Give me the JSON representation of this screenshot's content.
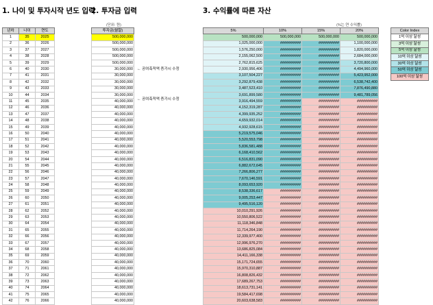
{
  "headers": {
    "section1": "1. 나이 및 투자시작 년도 입력",
    "section2": "2. 투자금 입력",
    "section3": "3. 수익률에 따른 자산"
  },
  "notes": {
    "unit1": "(단위: 원)",
    "unit2": "(%는 연 수익률)"
  },
  "left_table": {
    "columns": [
      "년차",
      "나이",
      "연도"
    ],
    "rows": [
      [
        1,
        35,
        2025
      ],
      [
        2,
        36,
        2026
      ],
      [
        3,
        37,
        2027
      ],
      [
        4,
        38,
        2028
      ],
      [
        5,
        39,
        2029
      ],
      [
        6,
        40,
        2030
      ],
      [
        7,
        41,
        2031
      ],
      [
        8,
        42,
        2032
      ],
      [
        9,
        43,
        2033
      ],
      [
        10,
        44,
        2034
      ],
      [
        11,
        45,
        2035
      ],
      [
        12,
        46,
        2036
      ],
      [
        13,
        47,
        2037
      ],
      [
        14,
        48,
        2038
      ],
      [
        15,
        49,
        2039
      ],
      [
        16,
        50,
        2040
      ],
      [
        17,
        51,
        2041
      ],
      [
        18,
        52,
        2042
      ],
      [
        19,
        53,
        2043
      ],
      [
        20,
        54,
        2044
      ],
      [
        21,
        55,
        2045
      ],
      [
        22,
        56,
        2046
      ],
      [
        23,
        57,
        2047
      ],
      [
        24,
        58,
        2048
      ],
      [
        25,
        59,
        2049
      ],
      [
        26,
        60,
        2050
      ],
      [
        27,
        61,
        2051
      ],
      [
        28,
        62,
        2052
      ],
      [
        29,
        63,
        2053
      ],
      [
        30,
        64,
        2054
      ],
      [
        31,
        65,
        2055
      ],
      [
        32,
        66,
        2056
      ],
      [
        33,
        67,
        2057
      ],
      [
        34,
        68,
        2058
      ],
      [
        35,
        69,
        2059
      ],
      [
        36,
        70,
        2060
      ],
      [
        37,
        71,
        2061
      ],
      [
        38,
        72,
        2062
      ],
      [
        39,
        73,
        2063
      ],
      [
        40,
        74,
        2064
      ],
      [
        41,
        75,
        2065
      ],
      [
        42,
        76,
        2066
      ]
    ]
  },
  "invest_table": {
    "column": "투자금(월말)",
    "values": [
      "500,000,000",
      "500,000,000",
      "500,000,000",
      "500,000,000",
      "500,000,000",
      "30,000,000",
      "30,000,000",
      "30,000,000",
      "30,000,000",
      "30,000,000",
      "40,000,000",
      "40,000,000",
      "40,000,000",
      "40,000,000",
      "40,000,000",
      "40,000,000",
      "40,000,000",
      "40,000,000",
      "40,000,000",
      "40,000,000",
      "40,000,000",
      "40,000,000",
      "40,000,000",
      "40,000,000",
      "40,000,000",
      "40,000,000",
      "40,000,000",
      "40,000,000",
      "40,000,000",
      "40,000,000",
      "40,000,000",
      "40,000,000",
      "40,000,000",
      "40,000,000",
      "40,000,000",
      "40,000,000",
      "40,000,000",
      "40,000,000",
      "40,000,000",
      "40,000,000",
      "40,000,000",
      "40,000,000"
    ],
    "annotations": [
      "← 공여축적액 증가시 수정",
      "← 공여축적액 증가시 수정"
    ]
  },
  "returns_table": {
    "columns": [
      "5%",
      "10%",
      "15%",
      "20%"
    ],
    "col5": [
      "500,000,000",
      "1,025,000,000",
      "1,576,250,000",
      "2,155,062,500",
      "2,762,815,625",
      "2,930,956,406",
      "3,107,504,227",
      "3,292,879,438",
      "3,487,523,410",
      "3,691,899,580",
      "3,916,494,559",
      "4,152,319,287",
      "4,399,935,252",
      "4,659,932,014",
      "4,932,928,615",
      "5,219,575,046",
      "5,520,553,798",
      "5,836,581,488",
      "6,168,410,562",
      "6,516,831,090",
      "6,882,672,645",
      "7,266,806,277",
      "7,670,146,591",
      "8,093,653,920",
      "8,538,336,617",
      "9,005,253,447",
      "9,495,516,120",
      "10,010,291,926",
      "10,550,806,522",
      "11,118,346,848",
      "11,714,264,190",
      "12,339,977,400",
      "12,996,976,270",
      "13,686,825,084",
      "14,411,166,338",
      "15,171,724,655",
      "15,970,310,887",
      "16,808,826,432",
      "17,689,267,753",
      "18,613,731,141",
      "19,584,417,698",
      "20,603,638,583"
    ],
    "hash": "##########",
    "col10_first": "500,000,000",
    "col15_first": "500,000,000",
    "col20": [
      "500,000,000",
      "1,100,000,000",
      "1,820,000,000",
      "2,684,000,000",
      "3,720,800,000",
      "4,494,960,000",
      "5,423,952,000",
      "6,538,742,400",
      "7,876,490,880",
      "9,481,789,056"
    ]
  },
  "legend": {
    "title": "Color Index",
    "items": [
      "1억 이상 달성",
      "3억 이상 달성",
      "5억 이상 달성",
      "10억 이상 달성",
      "30억 이상 달성",
      "50억 이상 달성",
      "100억 이상 달성"
    ]
  },
  "colors": {
    "c1": "#ffffff",
    "c3": "#d8f0dc",
    "c5": "#b8e2c2",
    "c10": "#e1f4f7",
    "c30": "#b2e3e9",
    "c50": "#7ecbd2",
    "c100": "#f6c9c6",
    "yellow": "#ffff00",
    "header": "#d9d9d9"
  }
}
